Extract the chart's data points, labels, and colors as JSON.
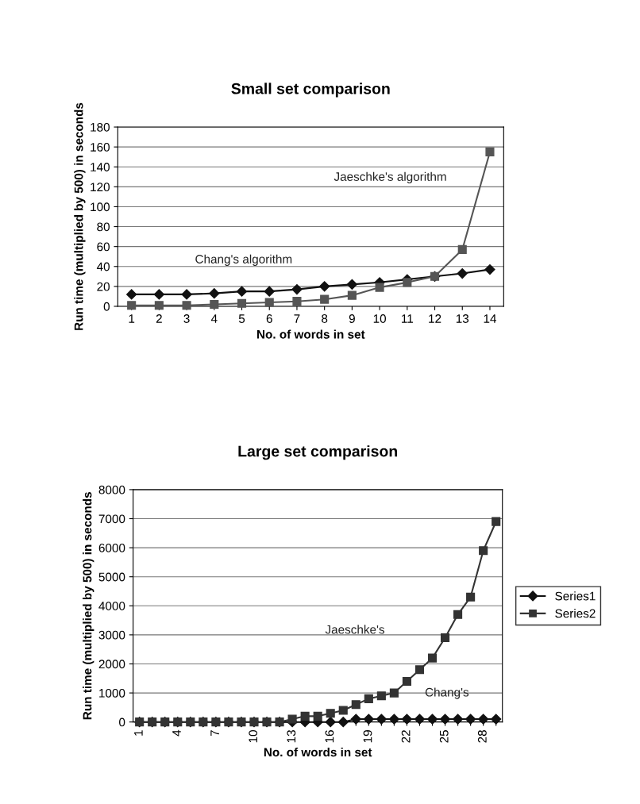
{
  "chart_data": [
    {
      "type": "line",
      "title": "Small set comparison",
      "xlabel": "No. of words in set",
      "ylabel": "Run time (multiplied by 500) in seconds",
      "categories": [
        "1",
        "2",
        "3",
        "4",
        "5",
        "6",
        "7",
        "8",
        "9",
        "10",
        "11",
        "12",
        "13",
        "14"
      ],
      "series": [
        {
          "color": "#111111",
          "marker": "diamond",
          "values": [
            12,
            12,
            12,
            13,
            15,
            15,
            17,
            20,
            22,
            24,
            27,
            30,
            33,
            37
          ]
        },
        {
          "color": "#555555",
          "marker": "square",
          "values": [
            1,
            1,
            1,
            2,
            3,
            4,
            5,
            7,
            11,
            19,
            24,
            30,
            57,
            155
          ]
        }
      ],
      "ylim": [
        0,
        180
      ],
      "yticks": [
        0,
        20,
        40,
        60,
        80,
        100,
        120,
        140,
        160,
        180
      ],
      "grid": "y",
      "legend": false,
      "annotations": [
        "Jaeschke's algorithm",
        "Chang's algorithm"
      ]
    },
    {
      "type": "line",
      "title": "Large set comparison",
      "xlabel": "No. of words in set",
      "ylabel": "Run time (multiplied by 500) in seconds",
      "categories": [
        "1",
        null,
        null,
        "4",
        null,
        null,
        "7",
        null,
        null,
        "10",
        null,
        null,
        "13",
        null,
        null,
        "16",
        null,
        null,
        "19",
        null,
        null,
        "22",
        null,
        null,
        "25",
        null,
        null,
        "28",
        null
      ],
      "series": [
        {
          "name": "Series1",
          "color": "#111111",
          "marker": "diamond",
          "values": [
            0,
            0,
            0,
            0,
            0,
            0,
            0,
            0,
            0,
            0,
            0,
            0,
            0,
            0,
            0,
            0,
            0,
            100,
            100,
            100,
            100,
            100,
            100,
            100,
            100,
            100,
            100,
            100,
            100
          ]
        },
        {
          "name": "Series2",
          "color": "#333333",
          "marker": "square",
          "values": [
            0,
            0,
            0,
            0,
            0,
            0,
            0,
            0,
            0,
            0,
            0,
            0,
            100,
            200,
            200,
            300,
            400,
            600,
            800,
            900,
            1000,
            1400,
            1800,
            2200,
            2900,
            3700,
            4300,
            5900,
            6900
          ]
        }
      ],
      "ylim": [
        0,
        8000
      ],
      "yticks": [
        0,
        1000,
        2000,
        3000,
        4000,
        5000,
        6000,
        7000,
        8000
      ],
      "grid": "y",
      "legend": "right",
      "annotations": [
        "Jaeschke's",
        "Chang's"
      ]
    }
  ]
}
